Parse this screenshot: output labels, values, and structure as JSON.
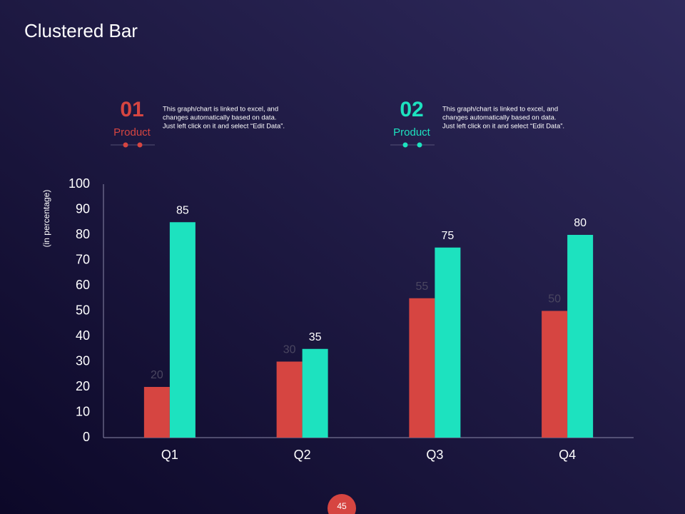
{
  "chart_data": {
    "type": "bar",
    "title": "Clustered Bar",
    "y_label": "(in percentage)",
    "categories": [
      "Q1",
      "Q2",
      "Q3",
      "Q4"
    ],
    "series": [
      {
        "name": "Product",
        "number": "01",
        "color": "#d64541",
        "label_color": "#4a4660",
        "values": [
          20,
          30,
          55,
          50
        ],
        "description": [
          "This graph/chart is linked to excel, and",
          "changes automatically based on data.",
          "Just left click on it and select “Edit Data”."
        ]
      },
      {
        "name": "Product",
        "number": "02",
        "color": "#1de2bf",
        "label_color": "#ffffff",
        "values": [
          85,
          35,
          75,
          80
        ],
        "description": [
          "This graph/chart is linked to excel, and",
          "changes automatically based on data.",
          "Just left click on it and select “Edit Data”."
        ]
      }
    ],
    "ylim": [
      0,
      100
    ],
    "yticks": [
      0,
      10,
      20,
      30,
      40,
      50,
      60,
      70,
      80,
      90,
      100
    ],
    "grid": false
  },
  "page_number": "45"
}
